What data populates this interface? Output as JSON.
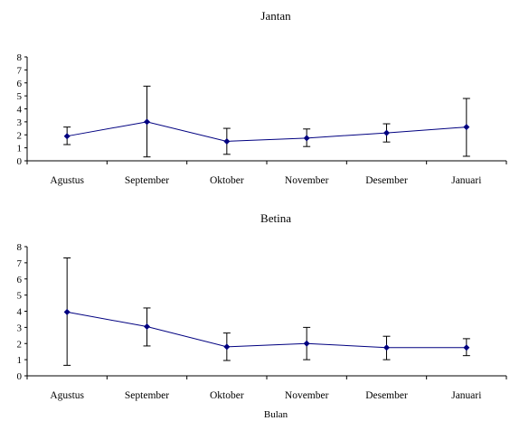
{
  "chart_data": [
    {
      "type": "line",
      "title": "Jantan",
      "xlabel": "",
      "ylabel": "",
      "categories": [
        "Agustus",
        "September",
        "Oktober",
        "November",
        "Desember",
        "Januari"
      ],
      "series": [
        {
          "values": [
            1.9,
            3.0,
            1.5,
            1.75,
            2.15,
            2.6
          ],
          "error_low": [
            1.25,
            0.3,
            0.5,
            1.1,
            1.45,
            0.35
          ],
          "error_high": [
            2.6,
            5.75,
            2.5,
            2.45,
            2.85,
            4.8
          ],
          "color": "#000080"
        }
      ],
      "ylim": [
        0,
        8
      ],
      "yticks": [
        0,
        1,
        2,
        3,
        4,
        5,
        6,
        7,
        8
      ],
      "grid": false,
      "legend": "none"
    },
    {
      "type": "line",
      "title": "Betina",
      "xlabel": "Bulan",
      "ylabel": "",
      "categories": [
        "Agustus",
        "September",
        "Oktober",
        "November",
        "Desember",
        "Januari"
      ],
      "series": [
        {
          "values": [
            3.95,
            3.05,
            1.8,
            2.0,
            1.75,
            1.75
          ],
          "error_low": [
            0.65,
            1.85,
            0.95,
            1.0,
            1.0,
            1.25
          ],
          "error_high": [
            7.3,
            4.2,
            2.65,
            3.0,
            2.45,
            2.3
          ],
          "color": "#000080"
        }
      ],
      "ylim": [
        0,
        8
      ],
      "yticks": [
        0,
        1,
        2,
        3,
        4,
        5,
        6,
        7,
        8
      ],
      "grid": false,
      "legend": "none"
    }
  ]
}
